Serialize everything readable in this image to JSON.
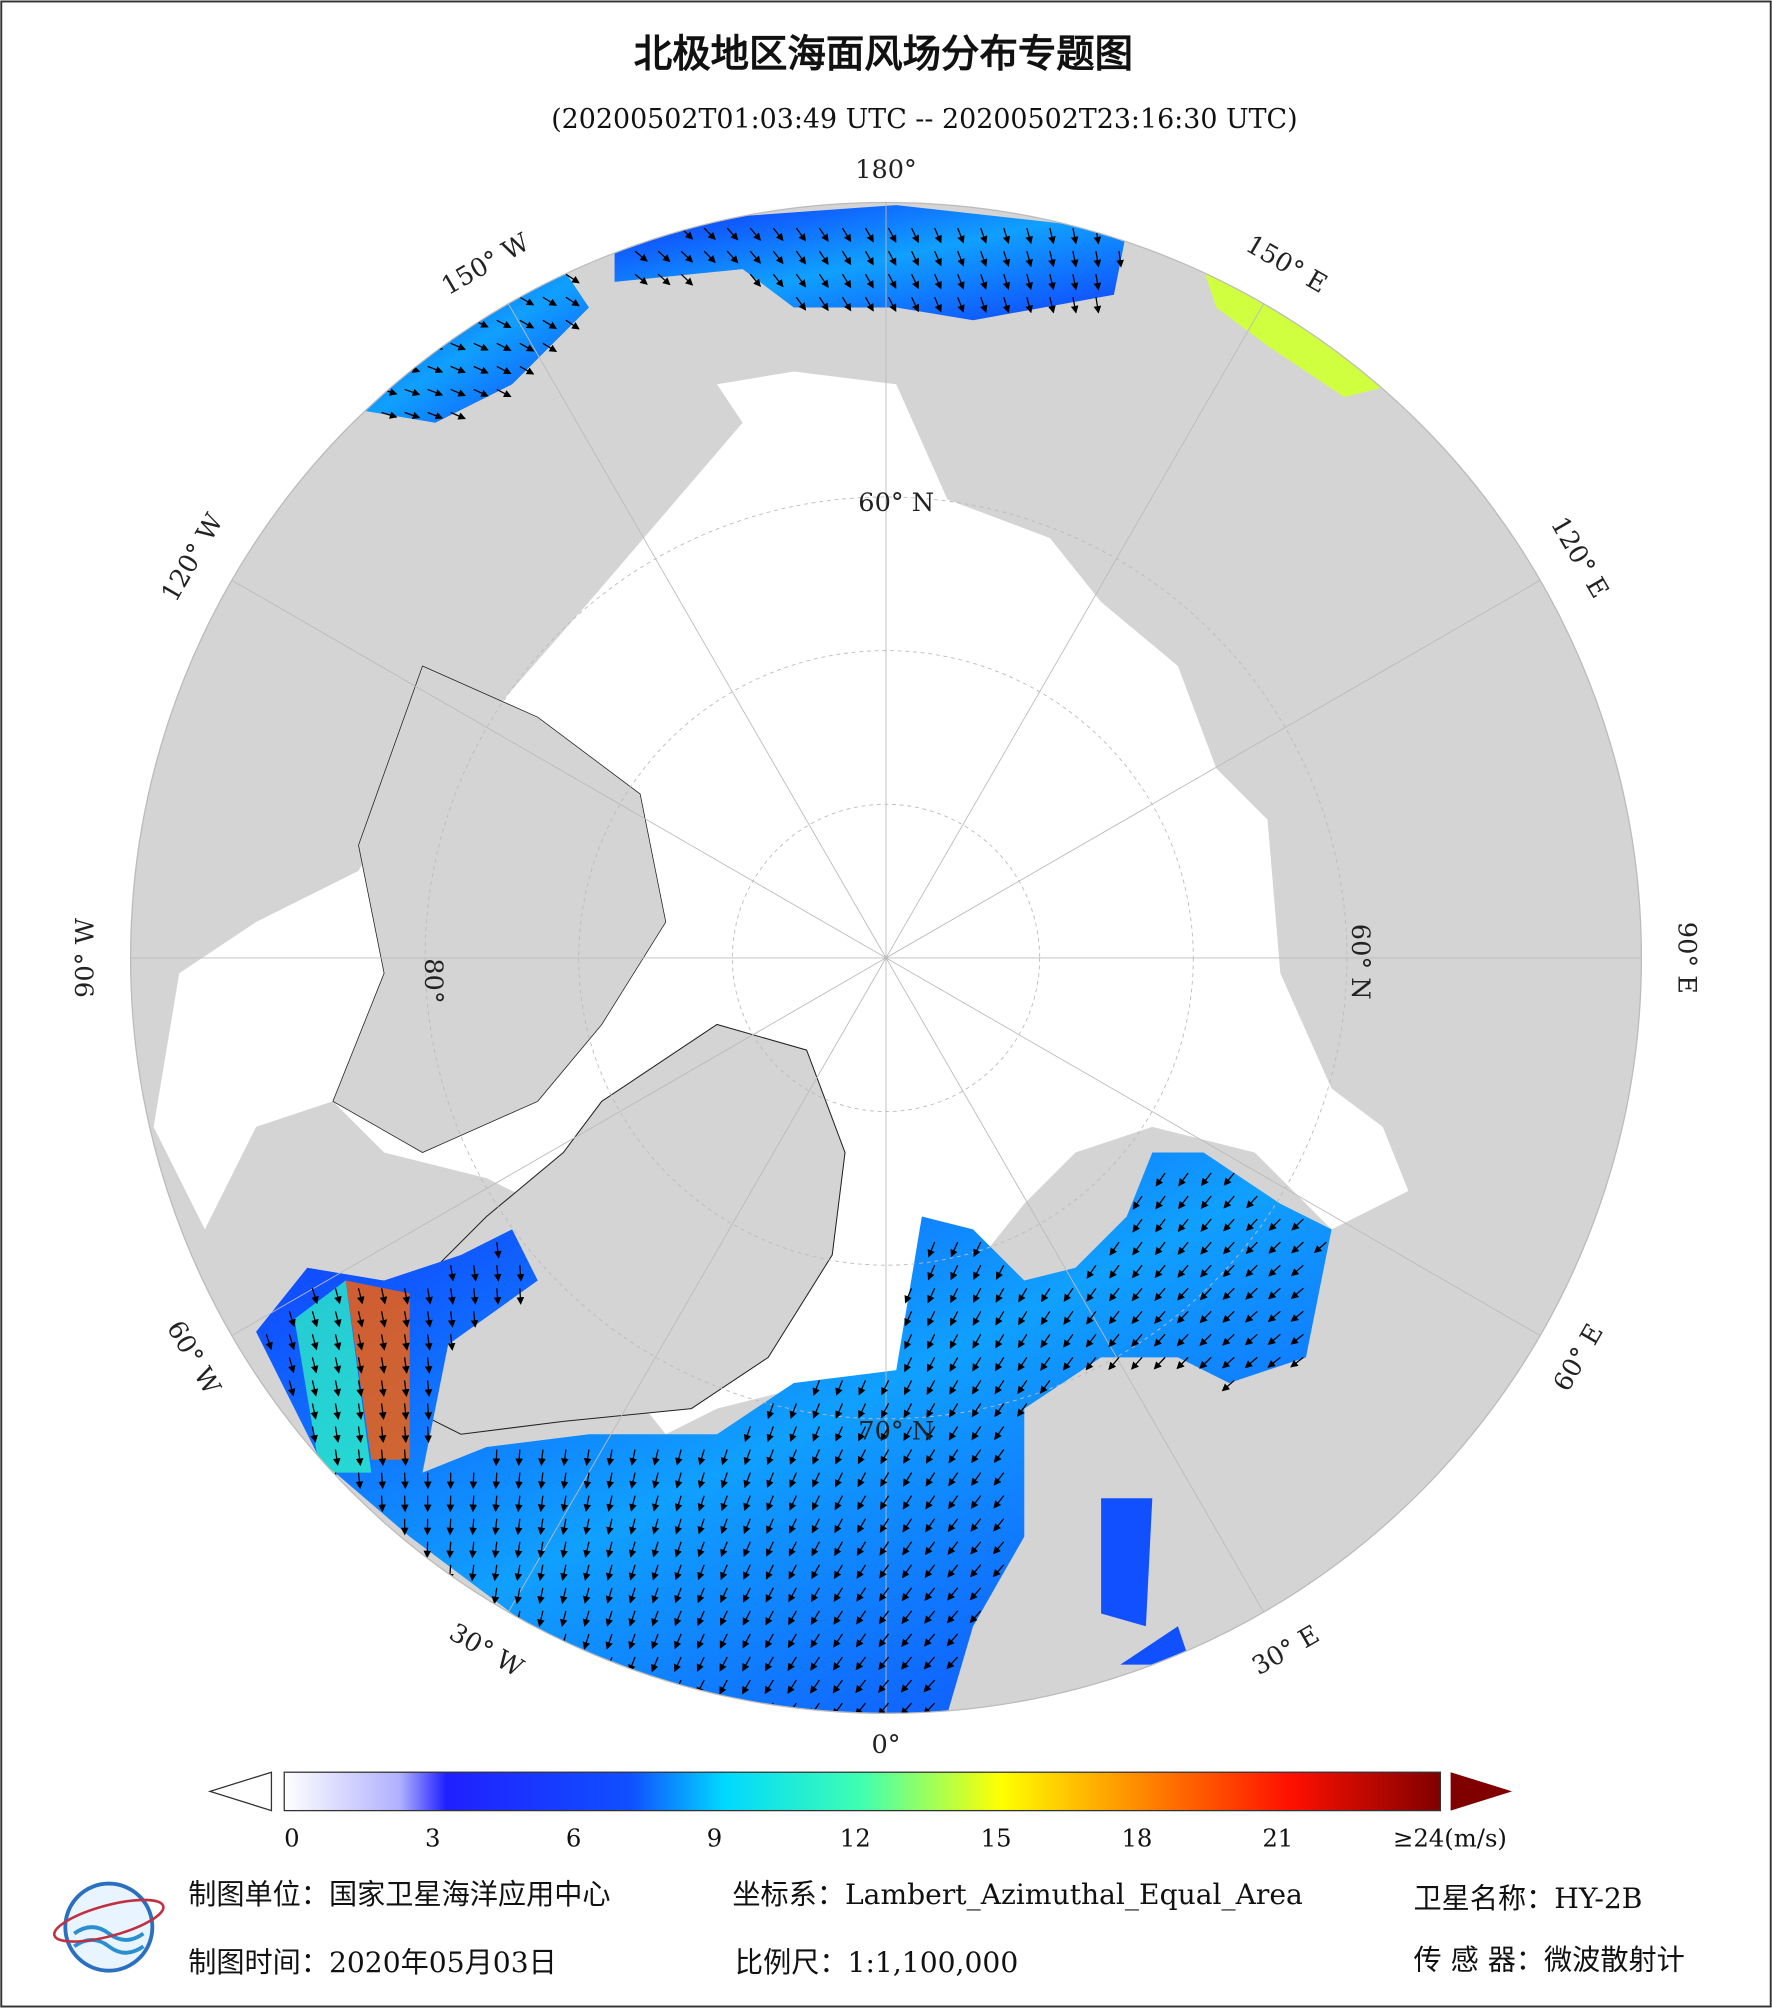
{
  "header": {
    "title": "北极地区海面风场分布专题图",
    "subtitle": "(20200502T01:03:49 UTC -- 20200502T23:16:30 UTC)"
  },
  "map": {
    "longitude_labels": [
      "180°",
      "150° E",
      "120° E",
      "90° E",
      "60° E",
      "30° E",
      "0°",
      "30° W",
      "60° W",
      "90° W",
      "120° W",
      "150° W"
    ],
    "latitude_labels": [
      "60° N",
      "60° N",
      "80°",
      "70° N"
    ]
  },
  "colorbar": {
    "ticks": [
      0,
      3,
      6,
      9,
      12,
      15,
      18,
      21
    ],
    "max_label": "≥24",
    "unit": "(m/s)",
    "range": [
      0,
      24
    ]
  },
  "footer": {
    "unit": "制图单位：国家卫星海洋应用中心",
    "coordinate": "坐标系：Lambert_Azimuthal_Equal_Area",
    "satellite": "卫星名称：HY-2B",
    "date": "制图时间：2020年05月03日",
    "scale": "比例尺：1:1,100,000",
    "sensor": "传 感 器：微波散射计"
  }
}
